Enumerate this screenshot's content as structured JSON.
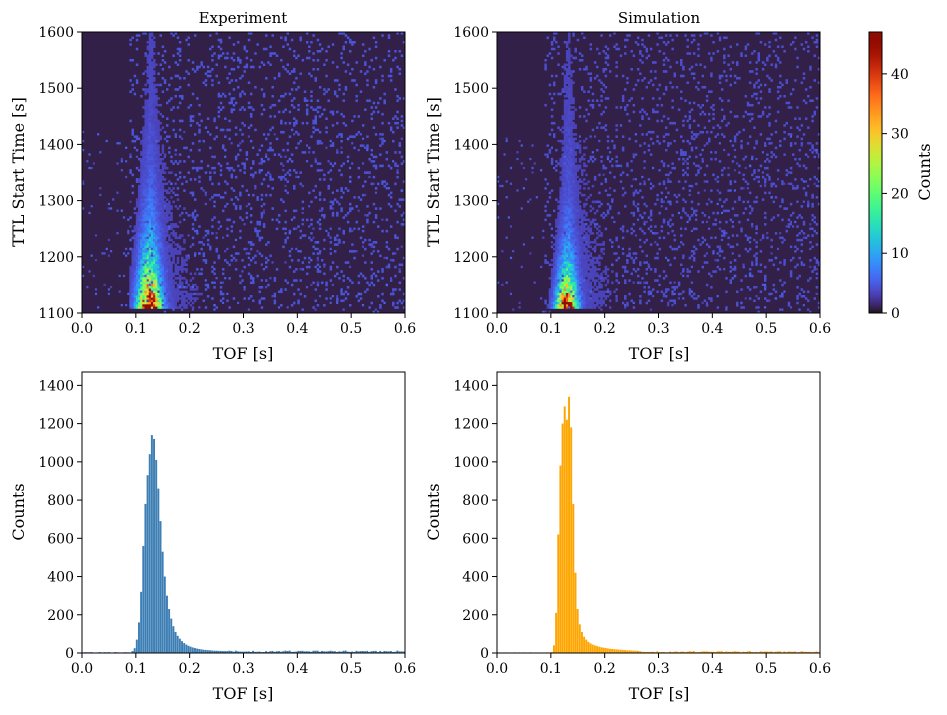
{
  "chart_data": [
    {
      "type": "heatmap",
      "title": "Experiment",
      "xlabel": "TOF [s]",
      "ylabel": "TTL Start Time [s]",
      "xlim": [
        0.0,
        0.6
      ],
      "ylim": [
        1100,
        1600
      ],
      "xticks": [
        "0.0",
        "0.1",
        "0.2",
        "0.3",
        "0.4",
        "0.5",
        "0.6"
      ],
      "yticks": [
        "1100",
        "1200",
        "1300",
        "1400",
        "1500",
        "1600"
      ],
      "colormap": "turbo",
      "density_model": {
        "peak_tof": 0.125,
        "tof_width": 0.012,
        "time_start": 1110,
        "time_decay": 60,
        "spread_start": 0.014,
        "spread_end": 0.006,
        "peak_counts": 45,
        "background_counts": 0.8
      }
    },
    {
      "type": "heatmap",
      "title": "Simulation",
      "xlabel": "TOF [s]",
      "ylabel": "TTL Start Time [s]",
      "xlim": [
        0.0,
        0.6
      ],
      "ylim": [
        1100,
        1600
      ],
      "xticks": [
        "0.0",
        "0.1",
        "0.2",
        "0.3",
        "0.4",
        "0.5",
        "0.6"
      ],
      "yticks": [
        "1100",
        "1200",
        "1300",
        "1400",
        "1500",
        "1600"
      ],
      "colormap": "turbo",
      "density_model": {
        "peak_tof": 0.13,
        "tof_width": 0.008,
        "time_start": 1110,
        "time_decay": 45,
        "spread_start": 0.012,
        "spread_end": 0.004,
        "peak_counts": 46,
        "background_counts": 0.6
      }
    },
    {
      "type": "bar",
      "subtype": "histogram",
      "title": "",
      "xlabel": "TOF [s]",
      "ylabel": "Counts",
      "xlim": [
        0.0,
        0.6
      ],
      "ylim": [
        0,
        1470
      ],
      "xticks": [
        "0.0",
        "0.1",
        "0.2",
        "0.3",
        "0.4",
        "0.5",
        "0.6"
      ],
      "yticks": [
        "0",
        "200",
        "400",
        "600",
        "800",
        "1000",
        "1200",
        "1400"
      ],
      "color": "#3d7fb4",
      "bin_width": 0.004,
      "bins": [
        [
          0.092,
          10
        ],
        [
          0.096,
          25
        ],
        [
          0.1,
          70
        ],
        [
          0.104,
          160
        ],
        [
          0.108,
          320
        ],
        [
          0.112,
          560
        ],
        [
          0.116,
          780
        ],
        [
          0.12,
          930
        ],
        [
          0.124,
          1040
        ],
        [
          0.128,
          1140
        ],
        [
          0.132,
          1120
        ],
        [
          0.136,
          1010
        ],
        [
          0.14,
          860
        ],
        [
          0.144,
          690
        ],
        [
          0.148,
          530
        ],
        [
          0.152,
          400
        ],
        [
          0.156,
          300
        ],
        [
          0.16,
          230
        ],
        [
          0.164,
          180
        ],
        [
          0.168,
          140
        ],
        [
          0.172,
          110
        ],
        [
          0.176,
          90
        ],
        [
          0.18,
          75
        ],
        [
          0.184,
          62
        ],
        [
          0.188,
          52
        ],
        [
          0.192,
          44
        ],
        [
          0.196,
          38
        ],
        [
          0.2,
          33
        ],
        [
          0.204,
          29
        ],
        [
          0.208,
          26
        ],
        [
          0.212,
          23
        ],
        [
          0.216,
          21
        ],
        [
          0.22,
          19
        ],
        [
          0.224,
          17
        ],
        [
          0.228,
          16
        ],
        [
          0.232,
          15
        ],
        [
          0.236,
          14
        ],
        [
          0.24,
          13
        ],
        [
          0.244,
          12
        ],
        [
          0.248,
          12
        ],
        [
          0.252,
          11
        ],
        [
          0.256,
          11
        ],
        [
          0.26,
          10
        ],
        [
          0.264,
          10
        ],
        [
          0.268,
          10
        ]
      ],
      "background_counts": 8
    },
    {
      "type": "bar",
      "subtype": "histogram",
      "title": "",
      "xlabel": "TOF [s]",
      "ylabel": "Counts",
      "xlim": [
        0.0,
        0.6
      ],
      "ylim": [
        0,
        1470
      ],
      "xticks": [
        "0.0",
        "0.1",
        "0.2",
        "0.3",
        "0.4",
        "0.5",
        "0.6"
      ],
      "yticks": [
        "0",
        "200",
        "400",
        "600",
        "800",
        "1000",
        "1200",
        "1400"
      ],
      "color": "#ffa500",
      "bin_width": 0.004,
      "bins": [
        [
          0.104,
          40
        ],
        [
          0.108,
          210
        ],
        [
          0.112,
          620
        ],
        [
          0.116,
          980
        ],
        [
          0.12,
          1200
        ],
        [
          0.124,
          1290
        ],
        [
          0.128,
          1220
        ],
        [
          0.132,
          1340
        ],
        [
          0.136,
          1180
        ],
        [
          0.14,
          780
        ],
        [
          0.144,
          420
        ],
        [
          0.148,
          230
        ],
        [
          0.152,
          150
        ],
        [
          0.156,
          110
        ],
        [
          0.16,
          85
        ],
        [
          0.164,
          70
        ],
        [
          0.168,
          58
        ],
        [
          0.172,
          50
        ],
        [
          0.176,
          44
        ],
        [
          0.18,
          40
        ],
        [
          0.184,
          36
        ],
        [
          0.188,
          33
        ],
        [
          0.192,
          30
        ],
        [
          0.196,
          28
        ],
        [
          0.2,
          26
        ],
        [
          0.204,
          24
        ],
        [
          0.208,
          22
        ],
        [
          0.212,
          21
        ],
        [
          0.216,
          20
        ],
        [
          0.22,
          19
        ],
        [
          0.224,
          18
        ],
        [
          0.228,
          17
        ],
        [
          0.232,
          16
        ],
        [
          0.236,
          15
        ],
        [
          0.24,
          14
        ],
        [
          0.244,
          14
        ],
        [
          0.248,
          13
        ],
        [
          0.252,
          12
        ],
        [
          0.256,
          12
        ],
        [
          0.26,
          11
        ]
      ],
      "background_counts": 6
    }
  ],
  "colorbar": {
    "label": "Counts",
    "range": [
      0,
      47
    ],
    "ticks": [
      "0",
      "10",
      "20",
      "30",
      "40"
    ],
    "colormap": "turbo"
  }
}
